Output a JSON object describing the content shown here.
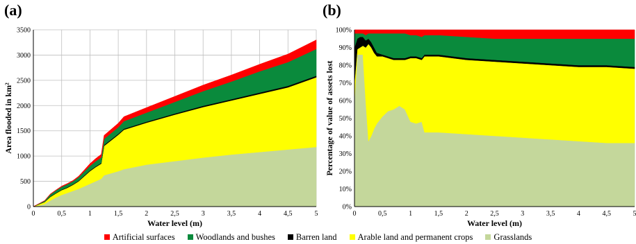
{
  "panels": [
    {
      "label": "(a)"
    },
    {
      "label": "(b)"
    }
  ],
  "legend": [
    {
      "name": "Artificial surfaces",
      "color": "#ff0000"
    },
    {
      "name": "Woodlands and bushes",
      "color": "#0a8a3c"
    },
    {
      "name": "Barren land",
      "color": "#000000"
    },
    {
      "name": "Arable land and permanent crops",
      "color": "#ffff00"
    },
    {
      "name": "Grasslands",
      "color": "#c4d79b"
    }
  ],
  "chart_data": [
    {
      "type": "area",
      "stacked": true,
      "xlabel": "Water level (m)",
      "ylabel": "Area flooded in km²",
      "xlim": [
        0,
        5
      ],
      "ylim": [
        0,
        3500
      ],
      "xticks": [
        "0",
        "0,5",
        "1",
        "1,5",
        "2",
        "2,5",
        "3",
        "3,5",
        "4",
        "4,5",
        "5"
      ],
      "yticks": [
        "0",
        "500",
        "1000",
        "1500",
        "2000",
        "2500",
        "3000",
        "3500"
      ],
      "grid": true,
      "x": [
        0,
        0.2,
        0.3,
        0.4,
        0.5,
        0.6,
        0.7,
        0.8,
        0.9,
        1.0,
        1.1,
        1.2,
        1.25,
        1.5,
        1.6,
        2.0,
        2.5,
        3.0,
        3.5,
        4.0,
        4.5,
        5.0
      ],
      "series": [
        {
          "name": "Grasslands",
          "color": "#c4d79b",
          "values": [
            0,
            50,
            120,
            180,
            230,
            270,
            310,
            350,
            400,
            450,
            500,
            550,
            620,
            700,
            740,
            830,
            900,
            970,
            1030,
            1080,
            1130,
            1180
          ]
        },
        {
          "name": "Arable land and permanent crops",
          "color": "#ffff00",
          "values": [
            0,
            40,
            70,
            80,
            95,
            100,
            120,
            150,
            200,
            250,
            280,
            300,
            580,
            720,
            780,
            830,
            920,
            1000,
            1070,
            1150,
            1230,
            1380
          ]
        },
        {
          "name": "Barren land",
          "color": "#000000",
          "values": [
            0,
            5,
            10,
            10,
            10,
            12,
            12,
            12,
            15,
            15,
            15,
            15,
            20,
            20,
            20,
            20,
            22,
            25,
            25,
            28,
            30,
            30
          ]
        },
        {
          "name": "Woodlands and bushes",
          "color": "#0a8a3c",
          "values": [
            0,
            20,
            40,
            50,
            55,
            60,
            60,
            70,
            80,
            90,
            100,
            110,
            120,
            130,
            150,
            180,
            230,
            290,
            350,
            420,
            470,
            530
          ]
        },
        {
          "name": "Artificial surfaces",
          "color": "#ff0000",
          "values": [
            0,
            5,
            10,
            10,
            15,
            15,
            15,
            20,
            30,
            45,
            55,
            60,
            70,
            80,
            90,
            100,
            110,
            120,
            130,
            140,
            160,
            180
          ]
        }
      ]
    },
    {
      "type": "area",
      "stacked": true,
      "xlabel": "Water level (m)",
      "ylabel": "Percentage of value of assets lost",
      "xlim": [
        0,
        5
      ],
      "ylim": [
        0,
        100
      ],
      "xticks": [
        "0",
        "0,5",
        "1",
        "1,5",
        "2",
        "2,5",
        "3",
        "3,5",
        "4",
        "4,5",
        "5"
      ],
      "yticks": [
        "0%",
        "10%",
        "20%",
        "30%",
        "40%",
        "50%",
        "60%",
        "70%",
        "80%",
        "90%",
        "100%"
      ],
      "grid": true,
      "x": [
        0,
        0.05,
        0.1,
        0.15,
        0.2,
        0.25,
        0.3,
        0.35,
        0.4,
        0.5,
        0.6,
        0.7,
        0.8,
        0.85,
        0.9,
        1.0,
        1.1,
        1.2,
        1.25,
        1.3,
        1.5,
        2.0,
        2.5,
        3.0,
        3.5,
        4.0,
        4.5,
        5.0
      ],
      "series": [
        {
          "name": "Grasslands",
          "color": "#c4d79b",
          "values": [
            60,
            86,
            86,
            86,
            60,
            37,
            40,
            44,
            47,
            51,
            54,
            55,
            57,
            56,
            55,
            48,
            47,
            48,
            42,
            42,
            42,
            41,
            40,
            39,
            38,
            37,
            36,
            36
          ]
        },
        {
          "name": "Arable land and permanent crops",
          "color": "#ffff00",
          "values": [
            10,
            3,
            4,
            5,
            30,
            55,
            50,
            43,
            38,
            34,
            30,
            28,
            26,
            27,
            28,
            36,
            37,
            35,
            43,
            43,
            43,
            42,
            42,
            42,
            42,
            42,
            43,
            42
          ]
        },
        {
          "name": "Barren land",
          "color": "#000000",
          "values": [
            20,
            6,
            6,
            5,
            4,
            3,
            3,
            3,
            2,
            1,
            1,
            1,
            1,
            1,
            1,
            1,
            1,
            1,
            1,
            1,
            1,
            1,
            1,
            1,
            1,
            1,
            1,
            1
          ]
        },
        {
          "name": "Woodlands and bushes",
          "color": "#0a8a3c",
          "values": [
            8,
            3,
            2,
            2,
            3,
            3,
            5,
            8,
            11,
            12,
            13,
            14,
            14,
            14,
            14,
            12,
            12,
            12,
            11,
            11,
            11,
            12,
            12,
            13,
            14,
            15,
            15,
            16
          ]
        },
        {
          "name": "Artificial surfaces",
          "color": "#ff0000",
          "values": [
            2,
            2,
            2,
            2,
            3,
            2,
            2,
            2,
            2,
            2,
            2,
            2,
            2,
            2,
            2,
            3,
            3,
            4,
            3,
            3,
            3,
            4,
            5,
            5,
            5,
            5,
            5,
            5
          ]
        }
      ]
    }
  ]
}
